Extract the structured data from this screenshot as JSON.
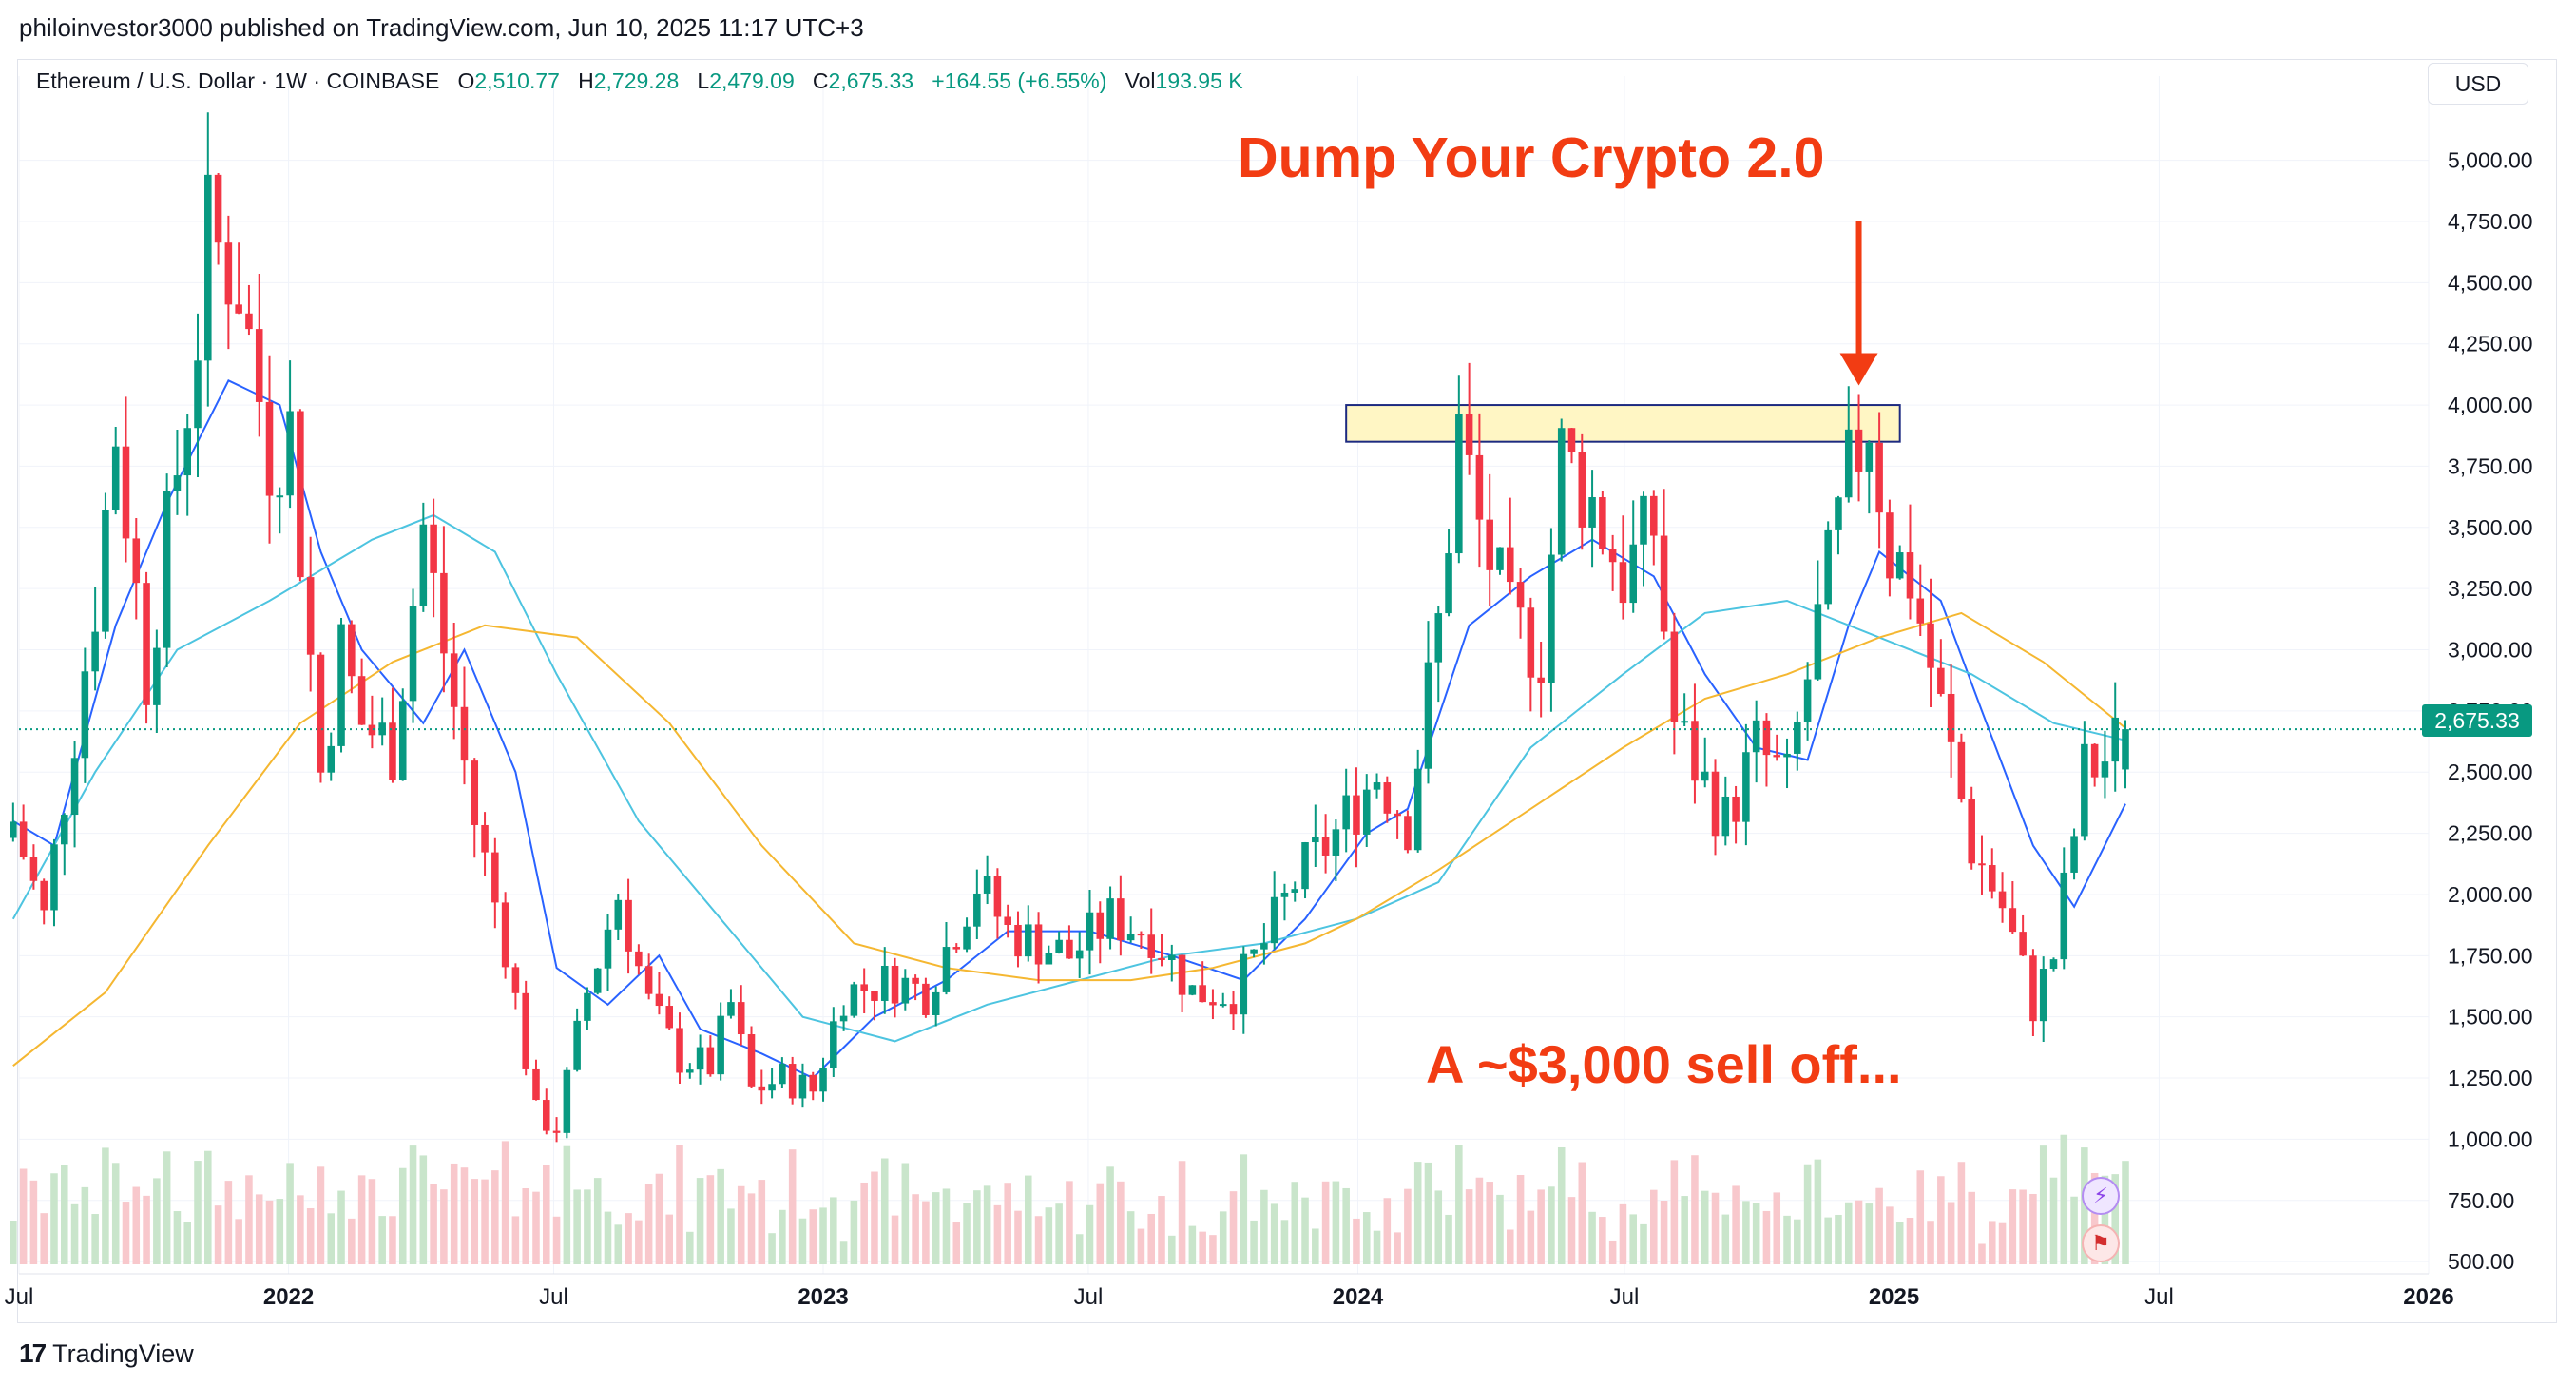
{
  "header": {
    "publish_line": "philoinvestor3000 published on TradingView.com, Jun 10, 2025 11:17 UTC+3"
  },
  "legend": {
    "symbol": "Ethereum / U.S. Dollar · 1W · COINBASE",
    "o_label": "O",
    "o_value": "2,510.77",
    "h_label": "H",
    "h_value": "2,729.28",
    "l_label": "L",
    "l_value": "2,479.09",
    "c_label": "C",
    "c_value": "2,675.33",
    "change": "+164.55 (+6.55%)",
    "vol_label": "Vol",
    "vol_value": "193.95 K"
  },
  "currency_button": "USD",
  "last_price_label": "2,675.33",
  "annotations": {
    "top": "Dump Your Crypto 2.0",
    "bottom": "A ~$3,000 sell off..."
  },
  "footer": {
    "brand": "TradingView"
  },
  "icons": {
    "bolt": "lightning-icon",
    "flag": "us-flag-icon"
  },
  "colors": {
    "up": "#089981",
    "down": "#f23645",
    "vol_up": "#c9e5cb",
    "vol_down": "#f8c8cc",
    "ma_fast": "#2962ff",
    "ma_mid": "#4dc4e0",
    "ma_slow": "#f5b731",
    "annotation": "#f23c13",
    "zone_fill": "#fff6c4",
    "zone_stroke": "#1c2a80"
  },
  "chart_data": {
    "type": "candlestick",
    "symbol": "ETH/USD",
    "interval": "1W",
    "y_axis": {
      "ticks": [
        500,
        750,
        1000,
        1250,
        1500,
        1750,
        2000,
        2250,
        2500,
        2750,
        3000,
        3250,
        3500,
        3750,
        4000,
        4250,
        4500,
        4750,
        5000
      ],
      "tick_labels": [
        "500.00",
        "750.00",
        "1,000.00",
        "1,250.00",
        "1,500.00",
        "1,750.00",
        "2,000.00",
        "2,250.00",
        "2,500.00",
        "2,750.00",
        "3,000.00",
        "3,250.00",
        "3,500.00",
        "3,750.00",
        "4,000.00",
        "4,250.00",
        "4,500.00",
        "4,750.00",
        "5,000.00"
      ],
      "range": [
        450,
        5150
      ]
    },
    "x_axis": {
      "range": [
        "2021-07-01",
        "2026-01-01"
      ],
      "ticks": [
        {
          "date": "2021-07-01",
          "label": "Jul",
          "bold": false
        },
        {
          "date": "2022-01-01",
          "label": "2022",
          "bold": true
        },
        {
          "date": "2022-07-01",
          "label": "Jul",
          "bold": false
        },
        {
          "date": "2023-01-01",
          "label": "2023",
          "bold": true
        },
        {
          "date": "2023-07-01",
          "label": "Jul",
          "bold": false
        },
        {
          "date": "2024-01-01",
          "label": "2024",
          "bold": true
        },
        {
          "date": "2024-07-01",
          "label": "Jul",
          "bold": false
        },
        {
          "date": "2025-01-01",
          "label": "2025",
          "bold": true
        },
        {
          "date": "2025-07-01",
          "label": "Jul",
          "bold": false
        },
        {
          "date": "2026-01-01",
          "label": "2026",
          "bold": true
        }
      ]
    },
    "last_price": 2675.33,
    "resistance_zone": {
      "from_date": "2023-12-24",
      "to_date": "2025-01-05",
      "low": 3850,
      "high": 4000
    },
    "arrow": {
      "date": "2024-12-08",
      "from_price": 4750,
      "to_price": 4080
    },
    "close_anchors": [
      [
        "2021-06-27",
        2300
      ],
      [
        "2021-07-18",
        1900
      ],
      [
        "2021-08-22",
        3200
      ],
      [
        "2021-09-05",
        3900
      ],
      [
        "2021-09-26",
        2900
      ],
      [
        "2021-10-31",
        4300
      ],
      [
        "2021-11-07",
        4700
      ],
      [
        "2021-11-28",
        4500
      ],
      [
        "2021-12-19",
        3800
      ],
      [
        "2022-01-02",
        3900
      ],
      [
        "2022-01-23",
        2500
      ],
      [
        "2022-02-06",
        3000
      ],
      [
        "2022-02-20",
        2700
      ],
      [
        "2022-03-13",
        2600
      ],
      [
        "2022-04-03",
        3500
      ],
      [
        "2022-04-17",
        3000
      ],
      [
        "2022-05-08",
        2300
      ],
      [
        "2022-05-29",
        1800
      ],
      [
        "2022-06-19",
        1100
      ],
      [
        "2022-07-03",
        1050
      ],
      [
        "2022-07-24",
        1600
      ],
      [
        "2022-08-14",
        2000
      ],
      [
        "2022-09-04",
        1550
      ],
      [
        "2022-09-25",
        1330
      ],
      [
        "2022-10-16",
        1300
      ],
      [
        "2022-10-30",
        1550
      ],
      [
        "2022-11-13",
        1200
      ],
      [
        "2022-12-04",
        1250
      ],
      [
        "2022-12-25",
        1200
      ],
      [
        "2023-01-15",
        1600
      ],
      [
        "2023-02-19",
        1650
      ],
      [
        "2023-03-12",
        1600
      ],
      [
        "2023-04-16",
        2050
      ],
      [
        "2023-05-07",
        1850
      ],
      [
        "2023-06-18",
        1750
      ],
      [
        "2023-07-16",
        1900
      ],
      [
        "2023-08-13",
        1850
      ],
      [
        "2023-09-10",
        1600
      ],
      [
        "2023-10-08",
        1600
      ],
      [
        "2023-10-29",
        1800
      ],
      [
        "2023-11-19",
        2050
      ],
      [
        "2023-12-17",
        2250
      ],
      [
        "2024-01-14",
        2500
      ],
      [
        "2024-02-04",
        2300
      ],
      [
        "2024-02-25",
        3100
      ],
      [
        "2024-03-10",
        3900
      ],
      [
        "2024-03-24",
        3500
      ],
      [
        "2024-04-14",
        3100
      ],
      [
        "2024-05-05",
        3000
      ],
      [
        "2024-05-19",
        3800
      ],
      [
        "2024-06-09",
        3600
      ],
      [
        "2024-06-30",
        3300
      ],
      [
        "2024-07-21",
        3500
      ],
      [
        "2024-08-04",
        2700
      ],
      [
        "2024-08-25",
        2450
      ],
      [
        "2024-09-08",
        2300
      ],
      [
        "2024-09-29",
        2600
      ],
      [
        "2024-10-20",
        2450
      ],
      [
        "2024-11-10",
        3100
      ],
      [
        "2024-12-01",
        3700
      ],
      [
        "2024-12-15",
        3950
      ],
      [
        "2024-12-29",
        3400
      ],
      [
        "2025-01-12",
        3300
      ],
      [
        "2025-02-02",
        2750
      ],
      [
        "2025-02-23",
        2200
      ],
      [
        "2025-03-16",
        1950
      ],
      [
        "2025-04-06",
        1550
      ],
      [
        "2025-04-20",
        1750
      ],
      [
        "2025-05-11",
        2500
      ],
      [
        "2025-05-25",
        2550
      ],
      [
        "2025-06-08",
        2675.33
      ]
    ],
    "moving_averages": [
      {
        "color": "#2962ff",
        "points": [
          [
            "2021-06-27",
            2300
          ],
          [
            "2021-07-25",
            2200
          ],
          [
            "2021-09-05",
            3100
          ],
          [
            "2021-10-10",
            3600
          ],
          [
            "2021-11-21",
            4100
          ],
          [
            "2021-12-26",
            4000
          ],
          [
            "2022-01-23",
            3400
          ],
          [
            "2022-02-20",
            3000
          ],
          [
            "2022-04-03",
            2700
          ],
          [
            "2022-05-01",
            3000
          ],
          [
            "2022-06-05",
            2500
          ],
          [
            "2022-07-03",
            1700
          ],
          [
            "2022-08-07",
            1550
          ],
          [
            "2022-09-11",
            1750
          ],
          [
            "2022-10-09",
            1450
          ],
          [
            "2022-11-20",
            1350
          ],
          [
            "2022-12-25",
            1250
          ],
          [
            "2023-02-05",
            1500
          ],
          [
            "2023-03-26",
            1650
          ],
          [
            "2023-05-07",
            1850
          ],
          [
            "2023-07-02",
            1850
          ],
          [
            "2023-08-27",
            1750
          ],
          [
            "2023-10-15",
            1650
          ],
          [
            "2023-11-26",
            1900
          ],
          [
            "2024-01-07",
            2250
          ],
          [
            "2024-02-04",
            2350
          ],
          [
            "2024-03-17",
            3100
          ],
          [
            "2024-04-28",
            3300
          ],
          [
            "2024-06-09",
            3450
          ],
          [
            "2024-07-21",
            3300
          ],
          [
            "2024-08-25",
            2900
          ],
          [
            "2024-09-29",
            2600
          ],
          [
            "2024-11-03",
            2550
          ],
          [
            "2024-12-01",
            3100
          ],
          [
            "2024-12-22",
            3400
          ],
          [
            "2025-02-02",
            3200
          ],
          [
            "2025-03-02",
            2750
          ],
          [
            "2025-04-06",
            2200
          ],
          [
            "2025-05-04",
            1950
          ],
          [
            "2025-06-08",
            2370
          ]
        ]
      },
      {
        "color": "#4dc4e0",
        "points": [
          [
            "2021-06-27",
            1900
          ],
          [
            "2021-08-22",
            2500
          ],
          [
            "2021-10-17",
            3000
          ],
          [
            "2021-12-19",
            3200
          ],
          [
            "2022-02-27",
            3450
          ],
          [
            "2022-04-10",
            3550
          ],
          [
            "2022-05-22",
            3400
          ],
          [
            "2022-07-03",
            2900
          ],
          [
            "2022-08-28",
            2300
          ],
          [
            "2022-10-23",
            1900
          ],
          [
            "2022-12-18",
            1500
          ],
          [
            "2023-02-19",
            1400
          ],
          [
            "2023-04-23",
            1550
          ],
          [
            "2023-06-25",
            1650
          ],
          [
            "2023-08-27",
            1750
          ],
          [
            "2023-10-29",
            1800
          ],
          [
            "2023-12-31",
            1900
          ],
          [
            "2024-02-25",
            2050
          ],
          [
            "2024-04-28",
            2600
          ],
          [
            "2024-06-30",
            2900
          ],
          [
            "2024-08-25",
            3150
          ],
          [
            "2024-10-20",
            3200
          ],
          [
            "2024-12-22",
            3050
          ],
          [
            "2025-02-23",
            2900
          ],
          [
            "2025-04-20",
            2700
          ],
          [
            "2025-06-08",
            2630
          ]
        ]
      },
      {
        "color": "#f5b731",
        "points": [
          [
            "2021-06-27",
            1300
          ],
          [
            "2021-08-29",
            1600
          ],
          [
            "2021-11-07",
            2200
          ],
          [
            "2022-01-09",
            2700
          ],
          [
            "2022-03-13",
            2950
          ],
          [
            "2022-05-15",
            3100
          ],
          [
            "2022-07-17",
            3050
          ],
          [
            "2022-09-18",
            2700
          ],
          [
            "2022-11-20",
            2200
          ],
          [
            "2023-01-22",
            1800
          ],
          [
            "2023-03-26",
            1700
          ],
          [
            "2023-05-28",
            1650
          ],
          [
            "2023-07-30",
            1650
          ],
          [
            "2023-09-24",
            1700
          ],
          [
            "2023-11-26",
            1800
          ],
          [
            "2023-12-31",
            1900
          ],
          [
            "2024-02-25",
            2100
          ],
          [
            "2024-04-28",
            2350
          ],
          [
            "2024-06-30",
            2600
          ],
          [
            "2024-08-25",
            2800
          ],
          [
            "2024-10-20",
            2900
          ],
          [
            "2024-12-22",
            3050
          ],
          [
            "2025-02-16",
            3150
          ],
          [
            "2025-04-13",
            2950
          ],
          [
            "2025-06-08",
            2680
          ]
        ]
      }
    ]
  }
}
